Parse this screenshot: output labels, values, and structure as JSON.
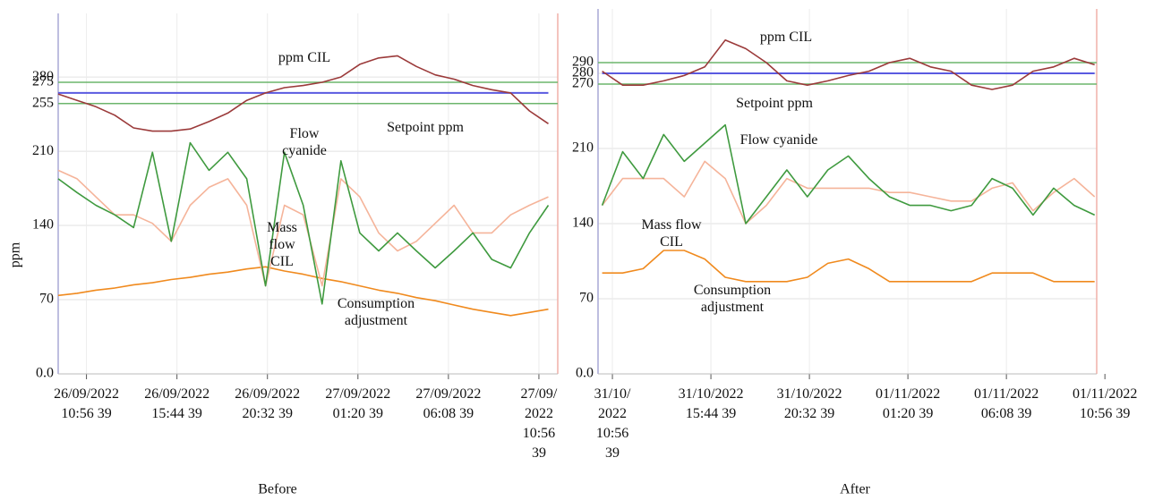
{
  "chart_data": [
    {
      "type": "line",
      "title": "Before",
      "ylabel": "ppm",
      "x": [
        -1.5,
        -0.5,
        0.5,
        1.5,
        2.5,
        3.5,
        4.5,
        5.5,
        6.5,
        7.5,
        8.5,
        9.5,
        10.5,
        11.5,
        12.5,
        13.5,
        14.5,
        15.5,
        16.5,
        17.5,
        18.5,
        19.5,
        20.5,
        21.5,
        22.5,
        23.5,
        24.5
      ],
      "xlim": [
        -1.5,
        25
      ],
      "xticks": [
        {
          "value": 0,
          "label": "26/09/2022 10:56 39"
        },
        {
          "value": 4.8,
          "label": "26/09/2022 15:44 39"
        },
        {
          "value": 9.6,
          "label": "26/09/2022 20:32 39"
        },
        {
          "value": 14.4,
          "label": "27/09/2022 01:20 39"
        },
        {
          "value": 19.2,
          "label": "27/09/2022 06:08 39"
        },
        {
          "value": 24,
          "label": "27/09/2022 10:56 39"
        }
      ],
      "ylim": [
        0,
        340
      ],
      "yticks": [
        {
          "value": 0,
          "label": "0.0"
        },
        70,
        140,
        210,
        255,
        275,
        280
      ],
      "grid": true,
      "limits": [
        275,
        255
      ],
      "limit_color": "#6cb56c",
      "series": [
        {
          "name": "ppm CIL",
          "color": "#9b3a3a",
          "values": [
            264,
            258,
            252,
            244,
            232,
            229,
            229,
            231,
            238,
            246,
            258,
            265,
            270,
            272,
            275,
            280,
            292,
            298,
            300,
            290,
            282,
            278,
            272,
            268,
            265,
            248,
            236
          ]
        },
        {
          "name": "Setpoint ppm",
          "color": "#5a5ae0",
          "values": [
            265,
            265,
            265,
            265,
            265,
            265,
            265,
            265,
            265,
            265,
            265,
            265,
            265,
            265,
            265,
            265,
            265,
            265,
            265,
            265,
            265,
            265,
            265,
            265,
            265,
            265,
            265
          ]
        },
        {
          "name": "Flow cyanide",
          "color": "#3f9a3f",
          "values": [
            184,
            171,
            159,
            150,
            138,
            209,
            125,
            218,
            192,
            209,
            184,
            83,
            209,
            159,
            66,
            201,
            133,
            116,
            133,
            116,
            100,
            116,
            133,
            108,
            100,
            133,
            159
          ]
        },
        {
          "name": "Mass flow CIL",
          "color": "#f5b49a",
          "values": [
            192,
            184,
            167,
            150,
            150,
            142,
            125,
            159,
            176,
            184,
            159,
            83,
            159,
            150,
            83,
            184,
            167,
            133,
            116,
            125,
            142,
            159,
            133,
            133,
            150,
            159,
            167
          ]
        },
        {
          "name": "Consumption adjustment",
          "color": "#f08a1e",
          "values": [
            74,
            76,
            79,
            81,
            84,
            86,
            89,
            91,
            94,
            96,
            99,
            101,
            97,
            94,
            90,
            87,
            83,
            79,
            76,
            72,
            69,
            65,
            61,
            58,
            55,
            58,
            61
          ]
        }
      ]
    },
    {
      "type": "line",
      "title": "After",
      "x": [
        -0.5,
        0.5,
        1.5,
        2.5,
        3.5,
        4.5,
        5.5,
        6.5,
        7.5,
        8.5,
        9.5,
        10.5,
        11.5,
        12.5,
        13.5,
        14.5,
        15.5,
        16.5,
        17.5,
        18.5,
        19.5,
        20.5,
        21.5,
        22.5,
        23.5
      ],
      "xlim": [
        -0.7,
        23.6
      ],
      "xticks": [
        {
          "value": 0,
          "label": "31/10/2022 10:56 39"
        },
        {
          "value": 4.8,
          "label": "31/10/2022 15:44 39"
        },
        {
          "value": 9.6,
          "label": "31/10/2022 20:32 39"
        },
        {
          "value": 14.4,
          "label": "01/11/2022 01:20 39"
        },
        {
          "value": 19.2,
          "label": "01/11/2022 06:08 39"
        },
        {
          "value": 24,
          "label": "01/11/2022 10:56 39"
        }
      ],
      "ylim": [
        0,
        340
      ],
      "yticks": [
        {
          "value": 0,
          "label": "0.0"
        },
        70,
        140,
        210,
        270,
        280,
        290
      ],
      "grid": true,
      "limits": [
        290,
        270
      ],
      "limit_color": "#6cb56c",
      "series": [
        {
          "name": "ppm CIL",
          "color": "#9b3a3a",
          "values": [
            282,
            269,
            269,
            273,
            278,
            286,
            311,
            303,
            290,
            273,
            269,
            273,
            278,
            282,
            290,
            294,
            286,
            282,
            269,
            265,
            269,
            282,
            286,
            294,
            288
          ]
        },
        {
          "name": "Setpoint ppm",
          "color": "#5a5ae0",
          "values": [
            280,
            280,
            280,
            280,
            280,
            280,
            280,
            280,
            280,
            280,
            280,
            280,
            280,
            280,
            280,
            280,
            280,
            280,
            280,
            280,
            280,
            280,
            280,
            280,
            280
          ]
        },
        {
          "name": "Flow cyanide",
          "color": "#3f9a3f",
          "values": [
            157,
            207,
            182,
            223,
            198,
            215,
            232,
            140,
            165,
            190,
            165,
            190,
            203,
            182,
            165,
            157,
            157,
            152,
            157,
            182,
            173,
            148,
            173,
            157,
            148
          ]
        },
        {
          "name": "Mass flow CIL",
          "color": "#f5b49a",
          "values": [
            157,
            182,
            182,
            182,
            165,
            198,
            182,
            140,
            157,
            182,
            173,
            173,
            173,
            173,
            169,
            169,
            165,
            161,
            161,
            173,
            178,
            152,
            169,
            182,
            165
          ]
        },
        {
          "name": "Consumption adjustment",
          "color": "#f08a1e",
          "values": [
            94,
            94,
            98,
            115,
            115,
            107,
            90,
            86,
            86,
            86,
            90,
            103,
            107,
            98,
            86,
            86,
            86,
            86,
            86,
            94,
            94,
            94,
            86,
            86,
            86
          ]
        }
      ]
    }
  ]
}
